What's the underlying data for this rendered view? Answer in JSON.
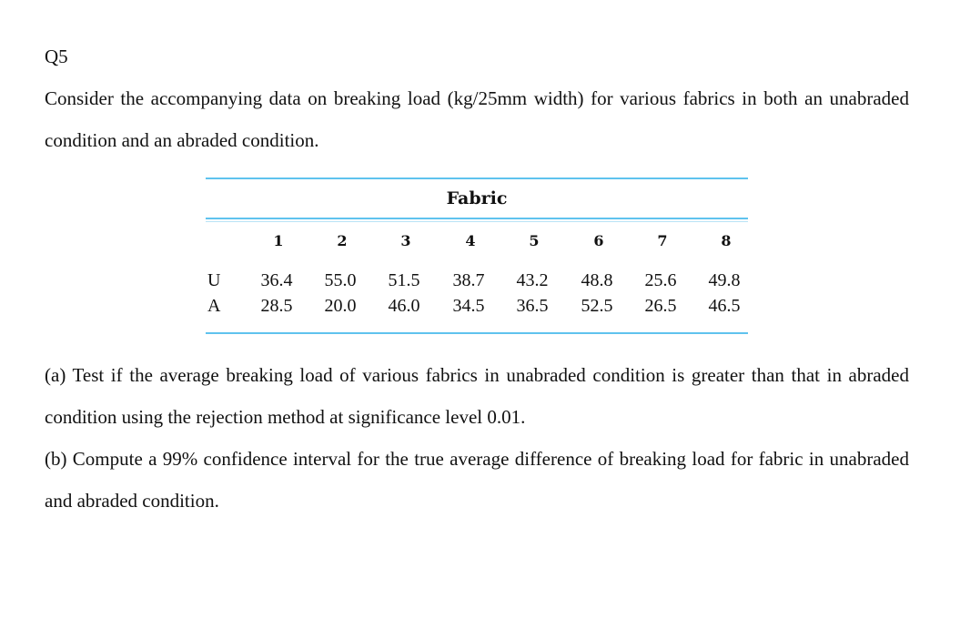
{
  "question_label": "Q5",
  "intro": "Consider the accompanying data on breaking load (kg/25mm width) for various fabrics in both an unabraded condition and an abraded condition.",
  "table": {
    "header": "Fabric",
    "columns": [
      "1",
      "2",
      "3",
      "4",
      "5",
      "6",
      "7",
      "8"
    ],
    "rows": [
      {
        "label": "U",
        "values": [
          "36.4",
          "55.0",
          "51.5",
          "38.7",
          "43.2",
          "48.8",
          "25.6",
          "49.8"
        ]
      },
      {
        "label": "A",
        "values": [
          "28.5",
          "20.0",
          "46.0",
          "34.5",
          "36.5",
          "52.5",
          "26.5",
          "46.5"
        ]
      }
    ]
  },
  "part_a": "(a) Test if the average breaking load of various fabrics in unabraded condition is greater than that in abraded condition using the rejection method at significance level 0.01.",
  "part_b": "(b) Compute a 99% confidence interval for the true average difference of breaking load for fabric in unabraded and abraded condition."
}
